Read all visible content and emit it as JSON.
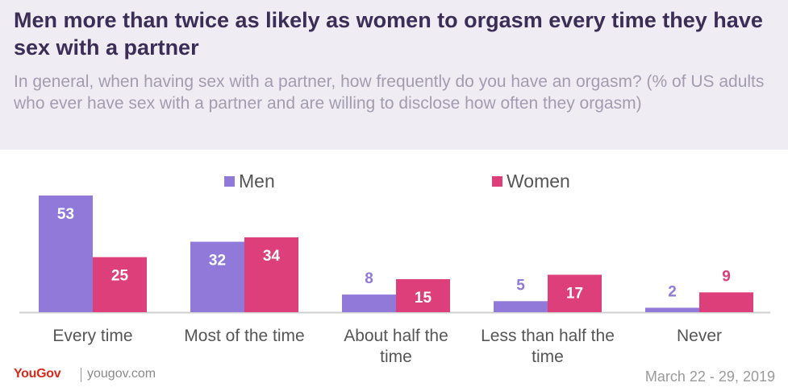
{
  "header": {
    "title": "Men more than twice as likely as women to orgasm every time they have sex with a partner",
    "subtitle": "In general, when having sex with a partner, how frequently do you have an orgasm? (% of US adults who ever have sex with a partner and are willing to disclose how often they orgasm)"
  },
  "footer": {
    "brand": "YouGov",
    "site": "yougov.com",
    "date": "March 22 - 29, 2019"
  },
  "colors": {
    "men": "#9079d8",
    "women": "#dc3f7a",
    "header_bg": "#efedf3",
    "title": "#3c2d56",
    "brand": "#d62a1b"
  },
  "chart_data": {
    "type": "bar",
    "categories": [
      [
        "Every time"
      ],
      [
        "Most of the time"
      ],
      [
        "About half the",
        "time"
      ],
      [
        "Less than half the",
        "time"
      ],
      [
        "Never"
      ]
    ],
    "series": [
      {
        "name": "Men",
        "values": [
          53,
          32,
          8,
          5,
          2
        ],
        "color": "#9079d8"
      },
      {
        "name": "Women",
        "values": [
          25,
          34,
          15,
          17,
          9
        ],
        "color": "#dc3f7a"
      }
    ],
    "title": "Men more than twice as likely as women to orgasm every time they have sex with a partner",
    "xlabel": "",
    "ylabel": "",
    "ylim": [
      0,
      53
    ],
    "grid": false,
    "legend": "top-center",
    "data_labels": true
  }
}
